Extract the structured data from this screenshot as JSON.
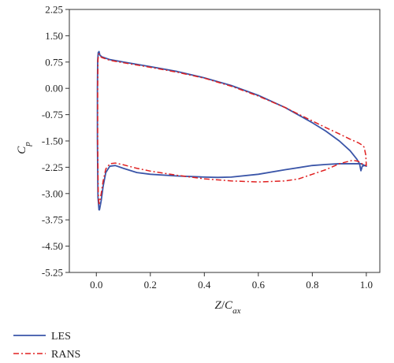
{
  "chart_data": {
    "type": "line",
    "xlabel": {
      "main": "Z",
      "slash": "/",
      "sub_main": "C",
      "sub": "ax"
    },
    "ylabel": {
      "main": "C",
      "sub": "p"
    },
    "xlim": [
      -0.1,
      1.05
    ],
    "ylim": [
      -5.25,
      2.25
    ],
    "x_ticks": [
      0.0,
      0.2,
      0.4,
      0.6,
      0.8,
      1.0
    ],
    "x_tick_labels": [
      "0.0",
      "0.2",
      "0.4",
      "0.6",
      "0.8",
      "1.0"
    ],
    "y_ticks": [
      2.25,
      1.5,
      0.75,
      0.0,
      -0.75,
      -1.5,
      -2.25,
      -3.0,
      -3.75,
      -4.5,
      -5.25
    ],
    "y_tick_labels": [
      "2.25",
      "1.50",
      "0.75",
      "0.00",
      "-0.75",
      "-1.50",
      "-2.25",
      "-3.00",
      "-3.75",
      "-4.50",
      "-5.25"
    ],
    "grid": false,
    "legend_position": "bottom-left, below plot",
    "series": [
      {
        "name": "LES",
        "color": "#3a55a8",
        "style": "solid",
        "points": [
          [
            0.01,
            -3.48
          ],
          [
            0.006,
            -3.1
          ],
          [
            0.004,
            -1.5
          ],
          [
            0.004,
            0.0
          ],
          [
            0.005,
            0.8
          ],
          [
            0.007,
            1.02
          ],
          [
            0.01,
            1.05
          ],
          [
            0.013,
            0.95
          ],
          [
            0.02,
            0.9
          ],
          [
            0.05,
            0.82
          ],
          [
            0.1,
            0.75
          ],
          [
            0.2,
            0.62
          ],
          [
            0.3,
            0.48
          ],
          [
            0.4,
            0.3
          ],
          [
            0.5,
            0.08
          ],
          [
            0.6,
            -0.2
          ],
          [
            0.7,
            -0.55
          ],
          [
            0.8,
            -0.98
          ],
          [
            0.85,
            -1.22
          ],
          [
            0.9,
            -1.5
          ],
          [
            0.94,
            -1.78
          ],
          [
            0.965,
            -2.02
          ],
          [
            0.975,
            -2.15
          ],
          [
            0.98,
            -2.35
          ],
          [
            0.985,
            -2.22
          ],
          [
            0.995,
            -2.2
          ],
          [
            1.0,
            -2.22
          ],
          [
            0.98,
            -2.15
          ],
          [
            0.95,
            -2.15
          ],
          [
            0.9,
            -2.15
          ],
          [
            0.85,
            -2.17
          ],
          [
            0.8,
            -2.2
          ],
          [
            0.7,
            -2.32
          ],
          [
            0.6,
            -2.45
          ],
          [
            0.5,
            -2.53
          ],
          [
            0.45,
            -2.54
          ],
          [
            0.4,
            -2.53
          ],
          [
            0.3,
            -2.5
          ],
          [
            0.2,
            -2.45
          ],
          [
            0.15,
            -2.4
          ],
          [
            0.1,
            -2.28
          ],
          [
            0.07,
            -2.2
          ],
          [
            0.05,
            -2.22
          ],
          [
            0.035,
            -2.4
          ],
          [
            0.025,
            -2.8
          ],
          [
            0.018,
            -3.2
          ],
          [
            0.012,
            -3.45
          ],
          [
            0.01,
            -3.48
          ]
        ]
      },
      {
        "name": "RANS",
        "color": "#e02020",
        "style": "dashdot",
        "points": [
          [
            0.01,
            -3.3
          ],
          [
            0.007,
            -3.0
          ],
          [
            0.005,
            -1.5
          ],
          [
            0.005,
            0.0
          ],
          [
            0.006,
            0.8
          ],
          [
            0.008,
            0.97
          ],
          [
            0.011,
            0.98
          ],
          [
            0.014,
            0.92
          ],
          [
            0.02,
            0.88
          ],
          [
            0.05,
            0.8
          ],
          [
            0.1,
            0.73
          ],
          [
            0.2,
            0.6
          ],
          [
            0.3,
            0.46
          ],
          [
            0.4,
            0.29
          ],
          [
            0.5,
            0.06
          ],
          [
            0.6,
            -0.22
          ],
          [
            0.7,
            -0.55
          ],
          [
            0.8,
            -0.93
          ],
          [
            0.85,
            -1.12
          ],
          [
            0.9,
            -1.3
          ],
          [
            0.94,
            -1.45
          ],
          [
            0.97,
            -1.55
          ],
          [
            0.985,
            -1.62
          ],
          [
            0.992,
            -1.68
          ],
          [
            0.998,
            -1.9
          ],
          [
            1.0,
            -2.2
          ],
          [
            0.99,
            -2.18
          ],
          [
            0.97,
            -2.08
          ],
          [
            0.95,
            -2.05
          ],
          [
            0.9,
            -2.15
          ],
          [
            0.85,
            -2.32
          ],
          [
            0.8,
            -2.45
          ],
          [
            0.75,
            -2.58
          ],
          [
            0.7,
            -2.64
          ],
          [
            0.6,
            -2.67
          ],
          [
            0.5,
            -2.64
          ],
          [
            0.4,
            -2.58
          ],
          [
            0.3,
            -2.48
          ],
          [
            0.2,
            -2.36
          ],
          [
            0.15,
            -2.28
          ],
          [
            0.1,
            -2.18
          ],
          [
            0.07,
            -2.13
          ],
          [
            0.05,
            -2.15
          ],
          [
            0.035,
            -2.3
          ],
          [
            0.025,
            -2.65
          ],
          [
            0.018,
            -3.0
          ],
          [
            0.012,
            -3.25
          ],
          [
            0.01,
            -3.3
          ]
        ]
      }
    ]
  }
}
